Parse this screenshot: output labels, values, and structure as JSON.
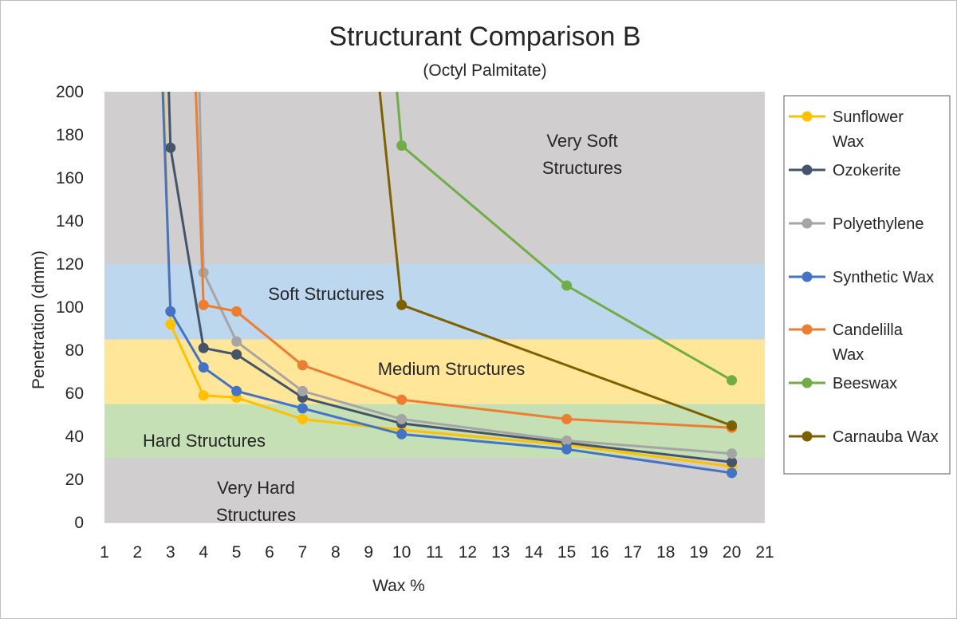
{
  "chart_data": {
    "type": "line",
    "title": "Structurant Comparison B",
    "subtitle": "(Octyl Palmitate)",
    "xlabel": "Wax %",
    "ylabel": "Penetration (dmm)",
    "ylim": [
      0,
      200
    ],
    "yticks": [
      0,
      20,
      40,
      60,
      80,
      100,
      120,
      140,
      160,
      180,
      200
    ],
    "xlim": [
      1,
      21
    ],
    "xticks": [
      1,
      2,
      3,
      4,
      5,
      6,
      7,
      8,
      9,
      10,
      11,
      12,
      13,
      14,
      15,
      16,
      17,
      18,
      19,
      20,
      21
    ],
    "grid": false,
    "legend_position": "right",
    "bands": [
      {
        "from": 0,
        "to": 30,
        "label_lines": [
          "Very Hard",
          "Structures"
        ],
        "color": "#d0cece"
      },
      {
        "from": 30,
        "to": 55,
        "label_lines": [
          "Hard Structures"
        ],
        "color": "#c5e0b4"
      },
      {
        "from": 55,
        "to": 85,
        "label_lines": [
          "Medium Structures"
        ],
        "color": "#ffe699"
      },
      {
        "from": 85,
        "to": 120,
        "label_lines": [
          "Soft Structures"
        ],
        "color": "#bdd7ee"
      },
      {
        "from": 120,
        "to": 200,
        "label_lines": [
          "Very Soft",
          "Structures"
        ],
        "color": "#d0cece"
      }
    ],
    "series": [
      {
        "name": "Sunflower Wax",
        "legend_lines": [
          "Sunflower",
          "Wax"
        ],
        "color": "#ffc000",
        "x": [
          3,
          4,
          5,
          7,
          10,
          15,
          20
        ],
        "y": [
          92,
          59,
          58,
          48,
          43,
          36,
          26
        ],
        "approach": {
          "x": 2.7,
          "y": 250
        }
      },
      {
        "name": "Ozokerite",
        "legend_lines": [
          "Ozokerite"
        ],
        "color": "#44546a",
        "x": [
          3,
          4,
          5,
          7,
          10,
          15,
          20
        ],
        "y": [
          174,
          81,
          78,
          58,
          46,
          37,
          28
        ],
        "approach": {
          "x": 2.85,
          "y": 250
        }
      },
      {
        "name": "Polyethylene",
        "legend_lines": [
          "Polyethylene"
        ],
        "color": "#a5a5a5",
        "x": [
          4,
          5,
          7,
          10,
          15,
          20
        ],
        "y": [
          116,
          84,
          61,
          48,
          38,
          32
        ],
        "approach": {
          "x": 3.8,
          "y": 250
        }
      },
      {
        "name": "Synthetic Wax",
        "legend_lines": [
          "Synthetic Wax"
        ],
        "color": "#4472c4",
        "x": [
          3,
          4,
          5,
          7,
          10,
          15,
          20
        ],
        "y": [
          98,
          72,
          61,
          53,
          41,
          34,
          23
        ],
        "approach": {
          "x": 2.65,
          "y": 250
        }
      },
      {
        "name": "Candelilla Wax",
        "legend_lines": [
          "Candelilla",
          "Wax"
        ],
        "color": "#ed7d31",
        "x": [
          4,
          5,
          7,
          10,
          15,
          20
        ],
        "y": [
          101,
          98,
          73,
          57,
          48,
          44
        ],
        "approach": {
          "x": 3.65,
          "y": 250
        }
      },
      {
        "name": "Beeswax",
        "legend_lines": [
          "Beeswax"
        ],
        "color": "#70ad47",
        "x": [
          10,
          15,
          20
        ],
        "y": [
          175,
          110,
          66
        ],
        "approach": {
          "x": 9.3,
          "y": 300
        }
      },
      {
        "name": "Carnauba Wax",
        "legend_lines": [
          "Carnauba Wax"
        ],
        "color": "#7f6000",
        "x": [
          10,
          20
        ],
        "y": [
          101,
          45
        ],
        "approach": {
          "x": 8.6,
          "y": 310
        }
      }
    ]
  }
}
